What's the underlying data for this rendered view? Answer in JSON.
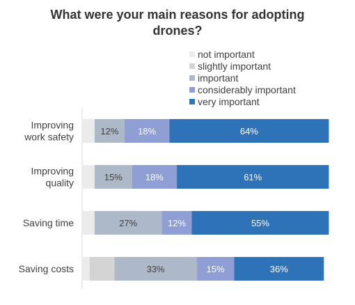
{
  "chart_data": {
    "type": "bar",
    "orientation": "horizontal",
    "stacked": true,
    "percent": true,
    "title_lines": [
      "What were your main reasons for adopting",
      "drones?"
    ],
    "legend_placement": "top-right",
    "categories": [
      {
        "lines": [
          "Improving",
          "work safety"
        ]
      },
      {
        "lines": [
          "Improving",
          "quality"
        ]
      },
      {
        "lines": [
          "Saving time"
        ]
      },
      {
        "lines": [
          "Saving costs"
        ]
      }
    ],
    "series": [
      {
        "name": "not important",
        "color": "#ebebeb",
        "label_color": "#404040",
        "values": [
          5,
          5,
          5,
          3
        ],
        "show_labels": [
          false,
          false,
          false,
          false
        ]
      },
      {
        "name": "slightly important",
        "color": "#d4d4d4",
        "label_color": "#404040",
        "values": [
          0,
          0,
          0,
          10
        ],
        "show_labels": [
          false,
          false,
          false,
          false
        ]
      },
      {
        "name": "important",
        "color": "#adb8c9",
        "label_color": "#404040",
        "values": [
          12,
          15,
          27,
          33
        ],
        "show_labels": [
          true,
          true,
          true,
          true
        ]
      },
      {
        "name": "considerably important",
        "color": "#8f9fd6",
        "label_color": "#ffffff",
        "values": [
          18,
          18,
          12,
          15
        ],
        "show_labels": [
          true,
          true,
          true,
          true
        ]
      },
      {
        "name": "very important",
        "color": "#2e72b8",
        "label_color": "#ffffff",
        "values": [
          64,
          61,
          55,
          36
        ],
        "show_labels": [
          true,
          true,
          true,
          true
        ]
      }
    ],
    "xlim": [
      0,
      100
    ],
    "grid": false
  }
}
